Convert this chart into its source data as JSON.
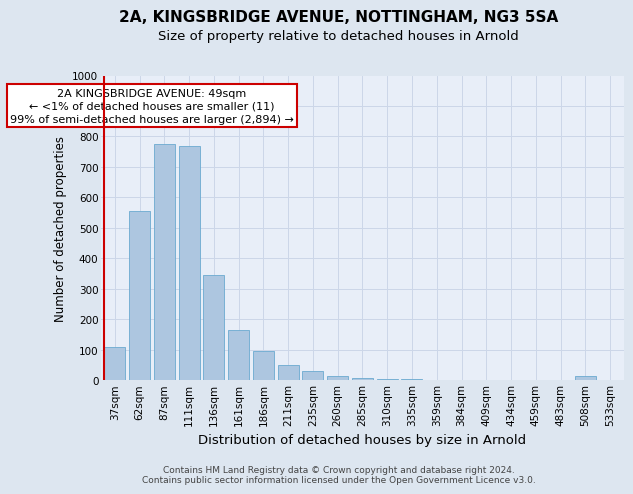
{
  "title1": "2A, KINGSBRIDGE AVENUE, NOTTINGHAM, NG3 5SA",
  "title2": "Size of property relative to detached houses in Arnold",
  "xlabel": "Distribution of detached houses by size in Arnold",
  "ylabel": "Number of detached properties",
  "categories": [
    "37sqm",
    "62sqm",
    "87sqm",
    "111sqm",
    "136sqm",
    "161sqm",
    "186sqm",
    "211sqm",
    "235sqm",
    "260sqm",
    "285sqm",
    "310sqm",
    "335sqm",
    "359sqm",
    "384sqm",
    "409sqm",
    "434sqm",
    "459sqm",
    "483sqm",
    "508sqm",
    "533sqm"
  ],
  "values": [
    110,
    555,
    775,
    770,
    345,
    165,
    95,
    50,
    30,
    15,
    8,
    5,
    3,
    2,
    1,
    1,
    1,
    1,
    1,
    15,
    1
  ],
  "bar_color": "#adc6e0",
  "bar_edge_color": "#6baad0",
  "highlight_color": "#cc0000",
  "ylim": [
    0,
    1000
  ],
  "yticks": [
    0,
    100,
    200,
    300,
    400,
    500,
    600,
    700,
    800,
    900,
    1000
  ],
  "annotation_text": "2A KINGSBRIDGE AVENUE: 49sqm\n← <1% of detached houses are smaller (11)\n99% of semi-detached houses are larger (2,894) →",
  "annotation_box_color": "#ffffff",
  "annotation_box_edge_color": "#cc0000",
  "grid_color": "#ccd6e8",
  "background_color": "#dde6f0",
  "plot_background_color": "#e8eef8",
  "footer_text": "Contains HM Land Registry data © Crown copyright and database right 2024.\nContains public sector information licensed under the Open Government Licence v3.0.",
  "title1_fontsize": 11,
  "title2_fontsize": 9.5,
  "xlabel_fontsize": 9.5,
  "ylabel_fontsize": 8.5,
  "tick_fontsize": 7.5,
  "annotation_fontsize": 8,
  "footer_fontsize": 6.5
}
